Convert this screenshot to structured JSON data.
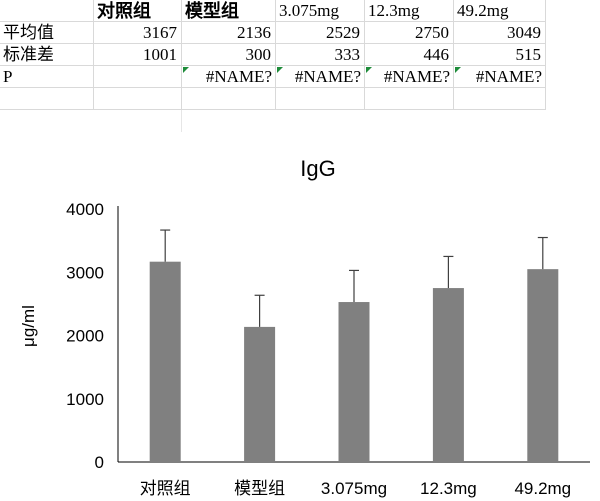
{
  "table": {
    "columns": [
      "",
      "对照组",
      "模型组",
      "3.075mg",
      "12.3mg",
      "49.2mg"
    ],
    "rows": [
      {
        "label": "平均值",
        "values": [
          "3167",
          "2136",
          "2529",
          "2750",
          "3049"
        ]
      },
      {
        "label": "标准差",
        "values": [
          "1001",
          "300",
          "333",
          "446",
          "515"
        ]
      },
      {
        "label": "P",
        "values": [
          "",
          "#NAME?",
          "#NAME?",
          "#NAME?",
          "#NAME?"
        ]
      }
    ]
  },
  "chart_data": {
    "type": "bar",
    "title": "IgG",
    "xlabel": "",
    "ylabel": "μg/ml",
    "categories": [
      "对照组",
      "模型组",
      "3.075mg",
      "12.3mg",
      "49.2mg"
    ],
    "values": [
      3167,
      2136,
      2529,
      2750,
      3049
    ],
    "error_plus": [
      500,
      500,
      500,
      500,
      500
    ],
    "ylim": [
      0,
      4000
    ],
    "yticks": [
      0,
      1000,
      2000,
      3000,
      4000
    ],
    "grid": false,
    "legend": "none",
    "bar_color": "#808080",
    "error_color": "#404040"
  }
}
